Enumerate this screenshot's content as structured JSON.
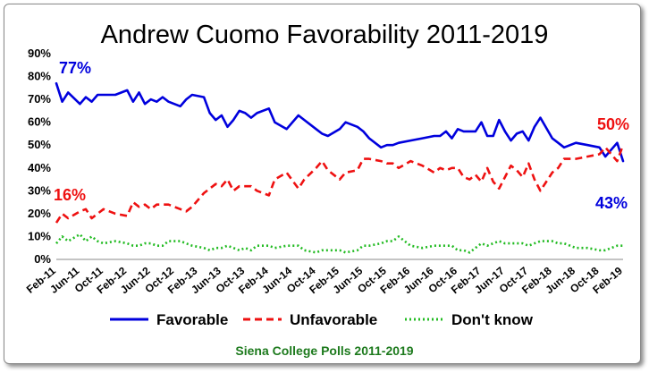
{
  "chart_data": {
    "type": "line",
    "title": "Andrew Cuomo Favorability 2011-2019",
    "source": "Siena College Polls 2011-2019",
    "ylim": [
      0,
      90
    ],
    "yticks": [
      "0%",
      "10%",
      "20%",
      "30%",
      "40%",
      "50%",
      "60%",
      "70%",
      "80%",
      "90%"
    ],
    "xlim": [
      0,
      96
    ],
    "x_tick_labels": [
      "Feb-11",
      "Jun-11",
      "Oct-11",
      "Feb-12",
      "Jun-12",
      "Oct-12",
      "Feb-13",
      "Jun-13",
      "Oct-13",
      "Feb-14",
      "Jun-14",
      "Oct-14",
      "Feb-15",
      "Jun-15",
      "Oct-15",
      "Feb-16",
      "Jun-16",
      "Oct-16",
      "Feb-17",
      "Jun-17",
      "Oct-17",
      "Feb-18",
      "Jun-18",
      "Oct-18",
      "Feb-19"
    ],
    "x": [
      0,
      1,
      2,
      4,
      5,
      6,
      7,
      8,
      10,
      12,
      13,
      14,
      15,
      16,
      17,
      18,
      19,
      21,
      22,
      23,
      25,
      26,
      27,
      28,
      29,
      30,
      31,
      32,
      33,
      34,
      36,
      37,
      39,
      41,
      42,
      44,
      45,
      46,
      48,
      49,
      51,
      52,
      53,
      55,
      56,
      57,
      58,
      60,
      62,
      64,
      65,
      66,
      67,
      68,
      69,
      70,
      71,
      72,
      73,
      74,
      75,
      76,
      77,
      78,
      79,
      80,
      81,
      82,
      84,
      85,
      86,
      88,
      90,
      92,
      93,
      94,
      95,
      96
    ],
    "series": [
      {
        "name": "Favorable",
        "color": "#0000dd",
        "style": "solid",
        "values": [
          77,
          69,
          73,
          68,
          71,
          69,
          72,
          72,
          72,
          74,
          69,
          73,
          68,
          70,
          69,
          71,
          69,
          67,
          70,
          72,
          71,
          64,
          61,
          63,
          58,
          61,
          65,
          64,
          62,
          64,
          66,
          60,
          57,
          63,
          61,
          57,
          55,
          54,
          57,
          60,
          58,
          56,
          53,
          49,
          50,
          50,
          51,
          52,
          53,
          54,
          54,
          56,
          53,
          57,
          56,
          56,
          56,
          60,
          54,
          54,
          61,
          56,
          52,
          55,
          56,
          52,
          58,
          62,
          53,
          51,
          49,
          51,
          50,
          49,
          45,
          48,
          51,
          43
        ]
      },
      {
        "name": "Unfavorable",
        "color": "#ee1111",
        "style": "dashed",
        "values": [
          16,
          20,
          18,
          21,
          22,
          18,
          20,
          22,
          20,
          19,
          25,
          23,
          24,
          22,
          24,
          24,
          24,
          22,
          21,
          23,
          29,
          31,
          33,
          32,
          35,
          30,
          32,
          32,
          32,
          30,
          28,
          35,
          38,
          31,
          35,
          40,
          43,
          39,
          35,
          38,
          39,
          44,
          44,
          43,
          42,
          42,
          40,
          43,
          41,
          38,
          40,
          39,
          40,
          40,
          36,
          35,
          37,
          34,
          40,
          34,
          31,
          36,
          41,
          39,
          36,
          42,
          35,
          30,
          38,
          40,
          44,
          44,
          45,
          46,
          49,
          46,
          43,
          50
        ]
      },
      {
        "name": "Don't know",
        "color": "#22bb22",
        "style": "dotted",
        "values": [
          7,
          10,
          8,
          11,
          8,
          10,
          8,
          7,
          8,
          7,
          6,
          6,
          7,
          7,
          6,
          6,
          8,
          8,
          7,
          6,
          5,
          4,
          5,
          5,
          6,
          5,
          4,
          5,
          4,
          6,
          6,
          5,
          6,
          6,
          4,
          3,
          4,
          4,
          4,
          3,
          4,
          6,
          6,
          7,
          8,
          8,
          10,
          6,
          5,
          6,
          6,
          6,
          6,
          4,
          4,
          3,
          5,
          7,
          6,
          7,
          8,
          7,
          7,
          7,
          7,
          6,
          7,
          8,
          8,
          7,
          7,
          5,
          5,
          4,
          4,
          5,
          6,
          6
        ]
      }
    ],
    "annotations": [
      {
        "text": "77%",
        "color": "#0000dd"
      },
      {
        "text": "16%",
        "color": "#ee1111"
      },
      {
        "text": "50%",
        "color": "#ee1111"
      },
      {
        "text": "43%",
        "color": "#0000dd"
      }
    ],
    "legend_position": "bottom",
    "grid": false
  }
}
